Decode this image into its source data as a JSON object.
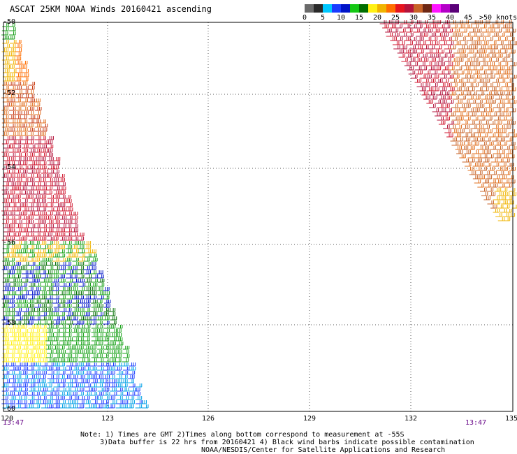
{
  "title": "ASCAT 25KM NOAA Winds 20160421 ascending",
  "colorbar": {
    "colors": [
      "#6a6a6a",
      "#2a2a2a",
      "#00c8ff",
      "#1a3cff",
      "#0014c8",
      "#14c814",
      "#006e00",
      "#fff014",
      "#f0b400",
      "#ff6e00",
      "#e6141e",
      "#b4143c",
      "#c86428",
      "#6e2814",
      "#ff14ff",
      "#b400c8",
      "#5a0078"
    ],
    "labels": [
      "0",
      "5",
      "10",
      "15",
      "20",
      "25",
      "30",
      "35",
      "40",
      "45"
    ],
    "end_label": ">50 knots"
  },
  "map": {
    "lon_labels": [
      "120",
      "123",
      "126",
      "129",
      "132",
      "135"
    ],
    "lat_labels": [
      "-50",
      "-52",
      "-54",
      "-56",
      "-58",
      "-60"
    ],
    "lon_range": [
      120,
      135
    ],
    "lat_range": [
      -60,
      -50
    ],
    "grid": true,
    "pass_times": [
      "13:47",
      "13:47"
    ]
  },
  "notes": [
    "Note: 1) Times are GMT 2)Times along bottom correspond to measurement at -55S",
    "3)Data buffer is 22 hrs from 20160421 4) Black wind barbs indicate possible contamination",
    "NOAA/NESDIS/Center for Satellite Applications and Research"
  ]
}
